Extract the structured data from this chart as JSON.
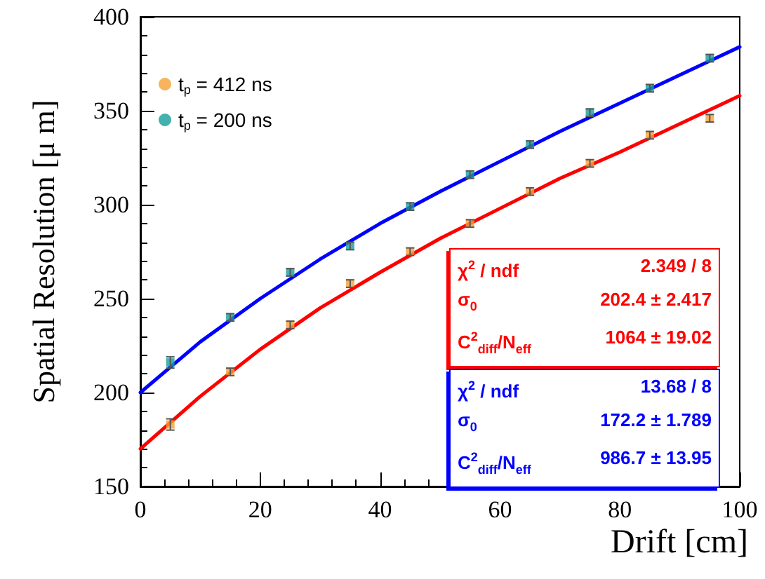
{
  "chart_data": {
    "type": "scatter",
    "xlabel": "Drift [cm]",
    "ylabel": "Spatial Resolution [μ m]",
    "xlim": [
      0,
      100
    ],
    "xticks": [
      0,
      20,
      40,
      60,
      80,
      100
    ],
    "ylim": [
      150,
      400
    ],
    "yticks": [
      150,
      200,
      250,
      300,
      350,
      400
    ],
    "x": [
      5,
      15,
      25,
      35,
      45,
      55,
      65,
      75,
      85,
      95
    ],
    "series": [
      {
        "name": "t$_{p}$ = 412 ns",
        "color": "#f7a034",
        "values": [
          183,
          211,
          236,
          258,
          275,
          290,
          307,
          322,
          337,
          346
        ],
        "errors": [
          3,
          2,
          2,
          2,
          2,
          2,
          2,
          2,
          2,
          2
        ]
      },
      {
        "name": "t$_{p}$ = 200 ns",
        "color": "#149e9c",
        "values": [
          216,
          240,
          264,
          278,
          299,
          316,
          332,
          349,
          362,
          378
        ],
        "errors": [
          3,
          2,
          2,
          2,
          2,
          2,
          2,
          2,
          2,
          2
        ]
      },
      {
        "type": "line",
        "marker": "none",
        "color": "#ff0000",
        "x": [
          0,
          10,
          20,
          30,
          40,
          50,
          60,
          70,
          80,
          90,
          100
        ],
        "values": [
          170,
          198,
          223,
          245,
          264,
          282,
          298,
          314,
          328,
          343,
          358
        ]
      },
      {
        "type": "line",
        "marker": "none",
        "color": "#0000ff",
        "x": [
          0,
          10,
          20,
          30,
          40,
          50,
          60,
          70,
          80,
          90,
          100
        ],
        "values": [
          200,
          227,
          250,
          271,
          290,
          307,
          323,
          339,
          354,
          369,
          384
        ]
      }
    ],
    "annotations": [
      "χ$^{2}$ / ndf",
      "2.349 / 8",
      "σ$_{0}$",
      "202.4 ± 2.417",
      "C$^{2}$$_{diff}$/N$_{eff}$",
      "1064 ± 19.02",
      "χ$^{2}$ / ndf",
      "13.68 / 8",
      "σ$_{0}$",
      "172.2 ± 1.789",
      "C$^{2}$$_{diff}$/N$_{eff}$",
      "986.7 ± 13.95"
    ],
    "legend": "top left",
    "marker": "square",
    "grid": false
  }
}
